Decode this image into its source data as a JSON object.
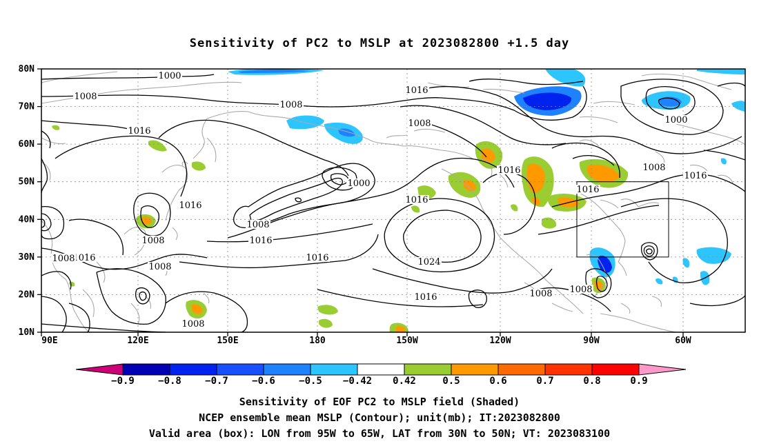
{
  "title": "Sensitivity of PC2 to MSLP at 2023082800 +1.5 day",
  "map": {
    "lat_labels": [
      "80N",
      "70N",
      "60N",
      "50N",
      "40N",
      "30N",
      "20N",
      "10N"
    ],
    "lon_labels": [
      "90E",
      "120E",
      "150E",
      "180",
      "150W",
      "120W",
      "90W",
      "60W"
    ],
    "lon_range": [
      "90E",
      "35W"
    ],
    "lat_range": [
      "10N",
      "80N"
    ],
    "grid": "dotted",
    "box": {
      "lon": [
        "95W",
        "65W"
      ],
      "lat": [
        "30N",
        "50N"
      ]
    },
    "contour_labels": [
      "1000",
      "1008",
      "1008",
      "1016",
      "1016",
      "1008",
      "1016",
      "1000",
      "1016",
      "1008",
      "1008",
      "1016",
      "1008",
      "1008",
      "1016",
      "1024",
      "1016",
      "1016",
      "1008",
      "1008",
      "1016",
      "1000",
      "1008",
      "1016",
      "1008",
      "1016"
    ]
  },
  "colorbar": {
    "labels": [
      "-0.9",
      "-0.8",
      "-0.7",
      "-0.6",
      "-0.5",
      "-0.42",
      "0.42",
      "0.5",
      "0.6",
      "0.7",
      "0.8",
      "0.9"
    ],
    "colors": [
      "#0000b4",
      "#0022ee",
      "#1850ff",
      "#1e82ff",
      "#2dc5ff",
      "#ffffff",
      "#9acd32",
      "#ff9900",
      "#ff6a00",
      "#ff3300",
      "#ff0000"
    ],
    "low_end": "#cc0077",
    "high_end": "#ff99cc"
  },
  "footer": {
    "line1": "Sensitivity of EOF PC2 to MSLP field (Shaded)",
    "line2": "NCEP ensemble mean MSLP (Contour); unit(mb); IT:2023082800",
    "line3": "Valid area (box): LON from 95W to 65W, LAT from 30N to 50N; VT: 2023083100"
  }
}
